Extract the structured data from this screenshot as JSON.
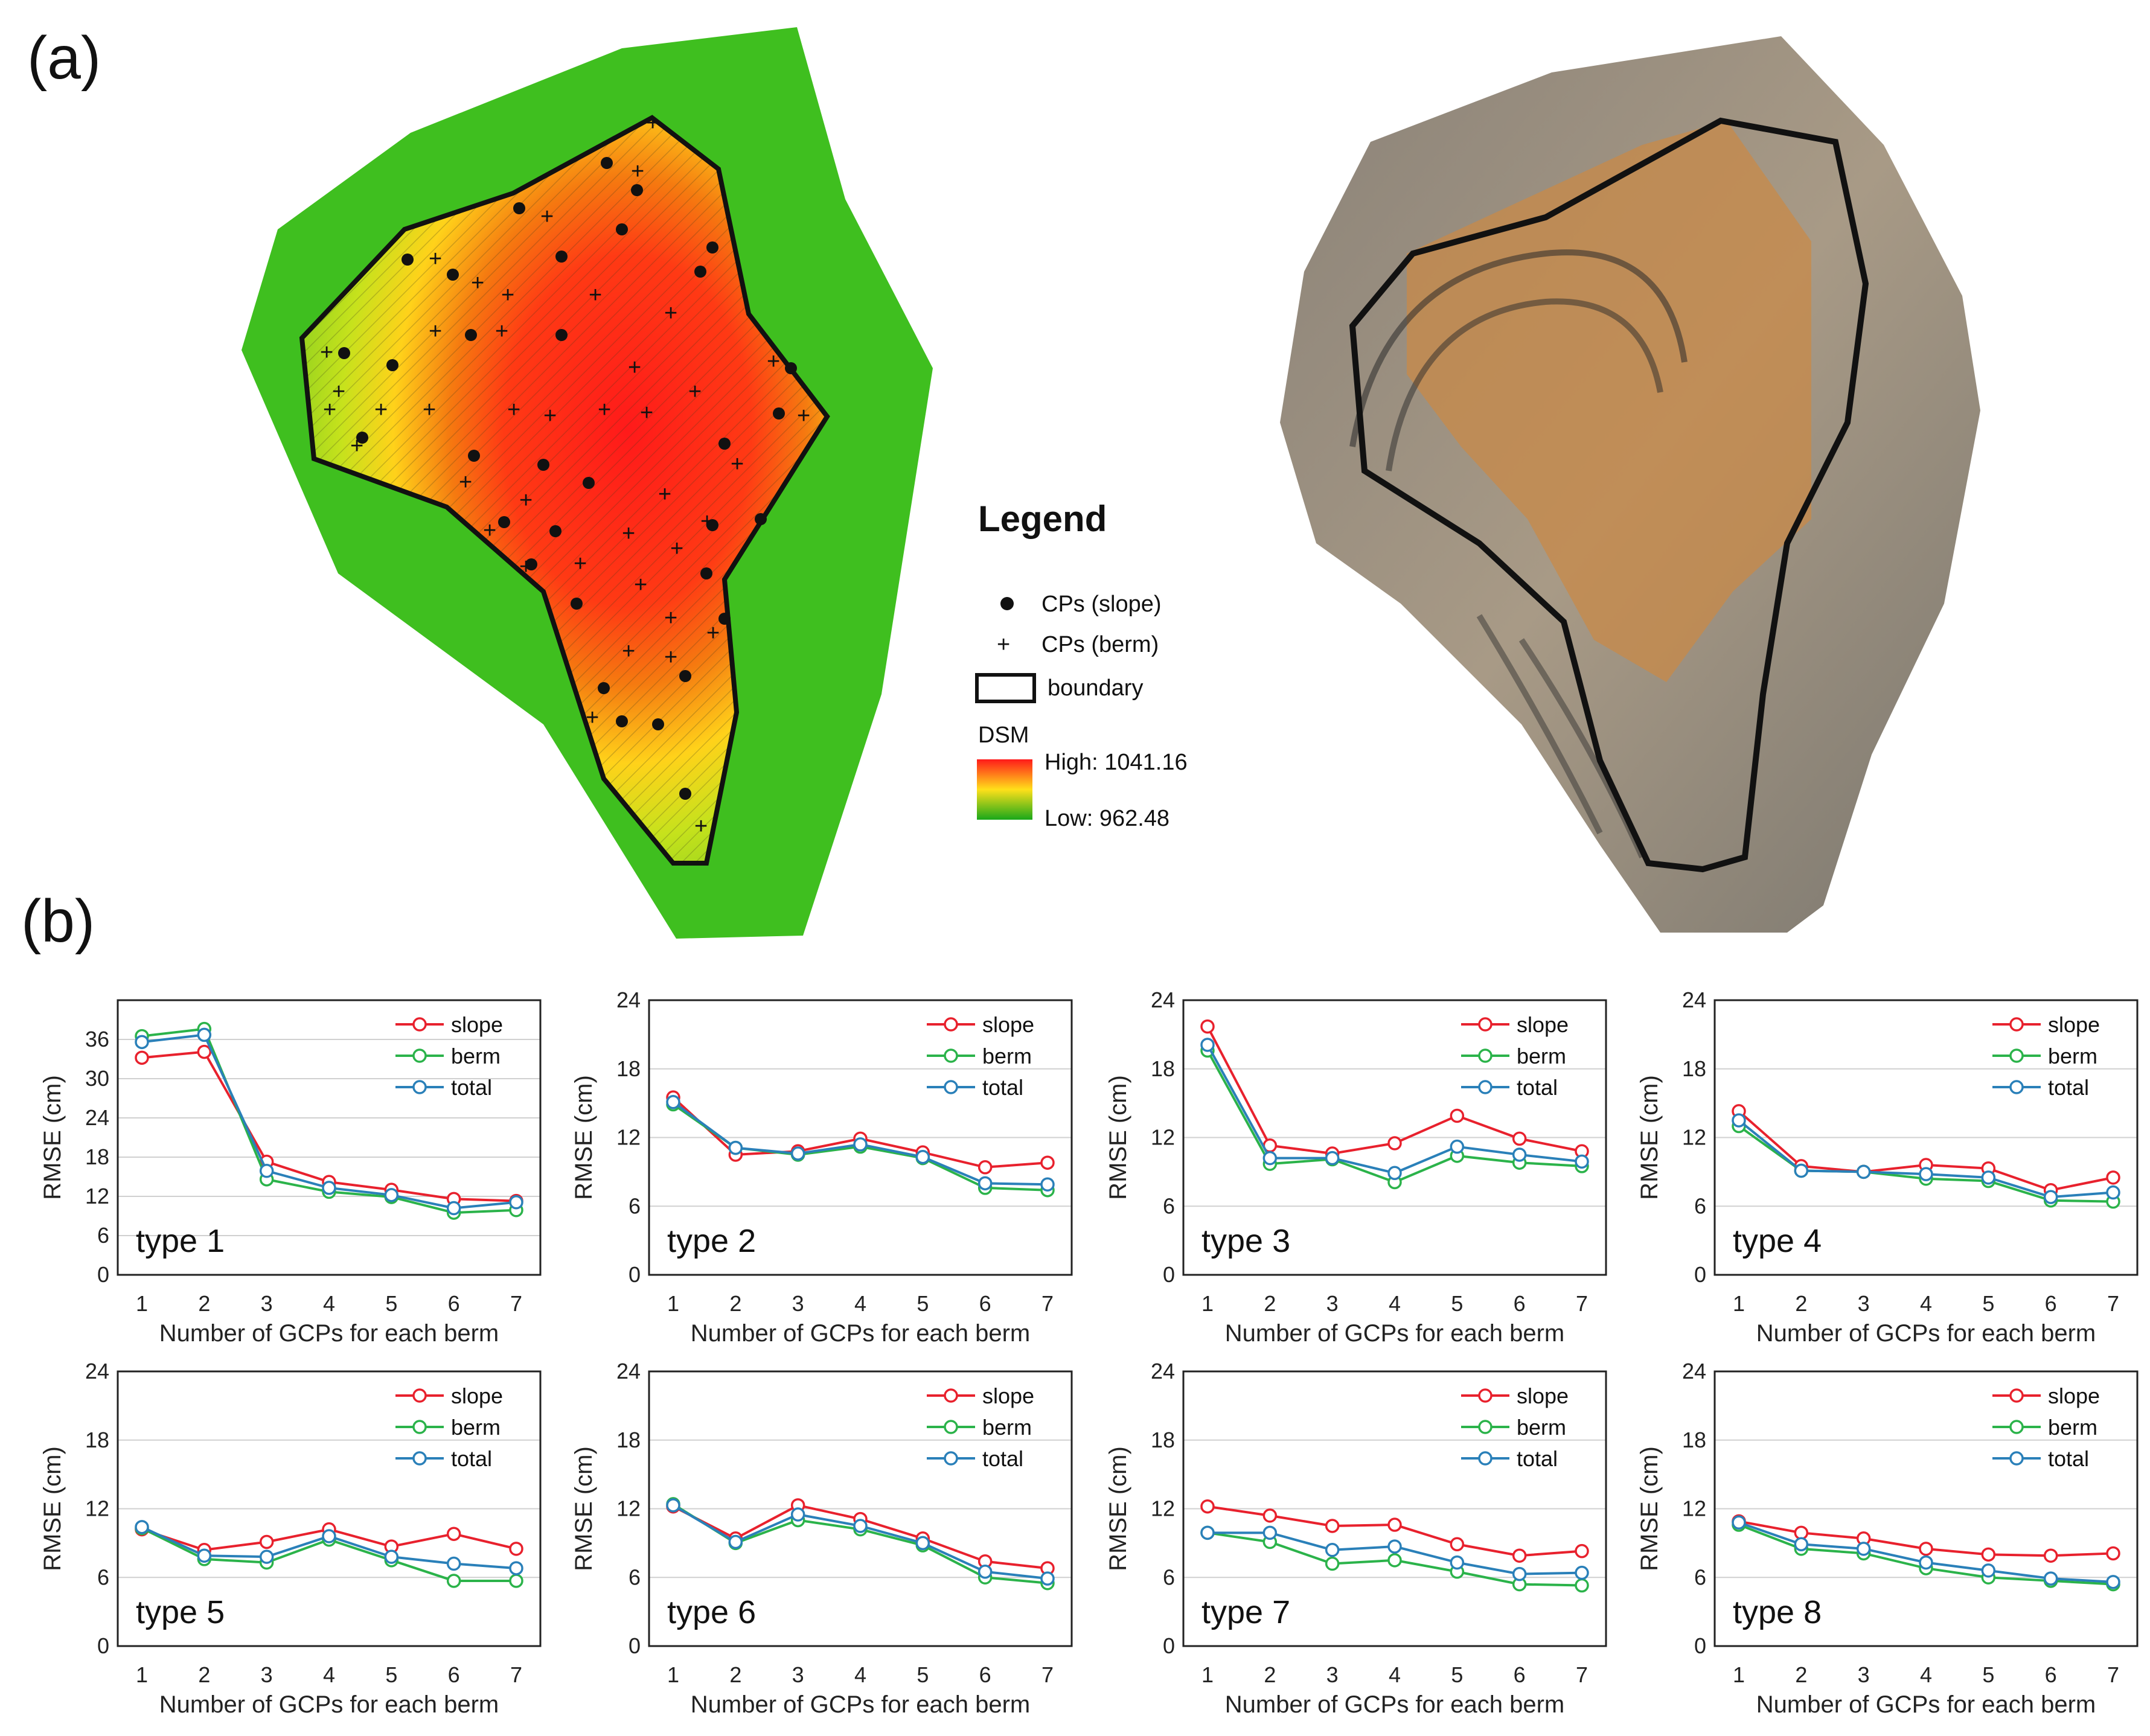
{
  "labels": {
    "panel_a": "(a)",
    "panel_b": "(b)"
  },
  "legend": {
    "title": "Legend",
    "cp_slope": "CPs (slope)",
    "cp_berm": "CPs (berm)",
    "boundary": "boundary",
    "dsm": "DSM",
    "high": "High: 1041.16",
    "low": "Low: 962.48",
    "dot_symbol": "•",
    "plus_symbol": "+"
  },
  "colors": {
    "slope": "#e8212d",
    "berm": "#2bb34a",
    "total": "#2a80b9",
    "dsm_high": "#ff1a1a",
    "dsm_mid": "#ffd21a",
    "dsm_low": "#2bb21a",
    "grid": "#d0d0d0"
  },
  "chart_data": [
    {
      "type": "line",
      "label": "type 1",
      "categories": [
        "1",
        "2",
        "3",
        "4",
        "5",
        "6",
        "7"
      ],
      "ylim": [
        0,
        42
      ],
      "yticks": [
        "0",
        "6",
        "12",
        "18",
        "24",
        "30",
        "36"
      ],
      "xlabel": "Number of GCPs for each berm",
      "ylabel": "RMSE (cm)",
      "series": [
        {
          "name": "slope",
          "values": [
            33.2,
            34.1,
            17.3,
            14.2,
            13.0,
            11.6,
            11.3
          ]
        },
        {
          "name": "berm",
          "values": [
            36.5,
            37.6,
            14.6,
            12.7,
            11.9,
            9.5,
            9.9
          ]
        },
        {
          "name": "total",
          "values": [
            35.6,
            36.7,
            15.9,
            13.3,
            12.2,
            10.2,
            11.1
          ]
        }
      ]
    },
    {
      "type": "line",
      "label": "type 2",
      "categories": [
        "1",
        "2",
        "3",
        "4",
        "5",
        "6",
        "7"
      ],
      "ylim": [
        0,
        24
      ],
      "yticks": [
        "0",
        "6",
        "12",
        "18",
        "24"
      ],
      "xlabel": "Number of GCPs for each berm",
      "ylabel": "RMSE (cm)",
      "series": [
        {
          "name": "slope",
          "values": [
            15.5,
            10.5,
            10.8,
            11.9,
            10.7,
            9.4,
            9.8
          ]
        },
        {
          "name": "berm",
          "values": [
            14.9,
            11.1,
            10.5,
            11.2,
            10.2,
            7.6,
            7.4
          ]
        },
        {
          "name": "total",
          "values": [
            15.1,
            11.1,
            10.6,
            11.4,
            10.3,
            8.0,
            7.9
          ]
        }
      ]
    },
    {
      "type": "line",
      "label": "type 3",
      "categories": [
        "1",
        "2",
        "3",
        "4",
        "5",
        "6",
        "7"
      ],
      "ylim": [
        0,
        24
      ],
      "yticks": [
        "0",
        "6",
        "12",
        "18",
        "24"
      ],
      "xlabel": "Number of GCPs for each berm",
      "ylabel": "RMSE (cm)",
      "series": [
        {
          "name": "slope",
          "values": [
            21.7,
            11.3,
            10.6,
            11.5,
            13.9,
            11.9,
            10.8
          ]
        },
        {
          "name": "berm",
          "values": [
            19.6,
            9.7,
            10.1,
            8.1,
            10.4,
            9.8,
            9.5
          ]
        },
        {
          "name": "total",
          "values": [
            20.1,
            10.2,
            10.2,
            8.9,
            11.2,
            10.5,
            9.9
          ]
        }
      ]
    },
    {
      "type": "line",
      "label": "type 4",
      "categories": [
        "1",
        "2",
        "3",
        "4",
        "5",
        "6",
        "7"
      ],
      "ylim": [
        0,
        24
      ],
      "yticks": [
        "0",
        "6",
        "12",
        "18",
        "24"
      ],
      "xlabel": "Number of GCPs for each berm",
      "ylabel": "RMSE (cm)",
      "series": [
        {
          "name": "slope",
          "values": [
            14.3,
            9.5,
            9.0,
            9.6,
            9.3,
            7.4,
            8.5
          ]
        },
        {
          "name": "berm",
          "values": [
            13.0,
            9.1,
            9.0,
            8.4,
            8.2,
            6.5,
            6.4
          ]
        },
        {
          "name": "total",
          "values": [
            13.5,
            9.1,
            9.0,
            8.8,
            8.5,
            6.8,
            7.2
          ]
        }
      ]
    },
    {
      "type": "line",
      "label": "type 5",
      "categories": [
        "1",
        "2",
        "3",
        "4",
        "5",
        "6",
        "7"
      ],
      "ylim": [
        0,
        24
      ],
      "yticks": [
        "0",
        "6",
        "12",
        "18",
        "24"
      ],
      "xlabel": "Number of GCPs for each berm",
      "ylabel": "RMSE (cm)",
      "series": [
        {
          "name": "slope",
          "values": [
            10.2,
            8.4,
            9.1,
            10.2,
            8.7,
            9.8,
            8.5
          ]
        },
        {
          "name": "berm",
          "values": [
            10.3,
            7.6,
            7.3,
            9.3,
            7.5,
            5.7,
            5.7
          ]
        },
        {
          "name": "total",
          "values": [
            10.4,
            7.9,
            7.8,
            9.6,
            7.8,
            7.2,
            6.8
          ]
        }
      ]
    },
    {
      "type": "line",
      "label": "type 6",
      "categories": [
        "1",
        "2",
        "3",
        "4",
        "5",
        "6",
        "7"
      ],
      "ylim": [
        0,
        24
      ],
      "yticks": [
        "0",
        "6",
        "12",
        "18",
        "24"
      ],
      "xlabel": "Number of GCPs for each berm",
      "ylabel": "RMSE (cm)",
      "series": [
        {
          "name": "slope",
          "values": [
            12.2,
            9.4,
            12.3,
            11.1,
            9.4,
            7.4,
            6.8
          ]
        },
        {
          "name": "berm",
          "values": [
            12.4,
            9.0,
            11.0,
            10.2,
            8.8,
            6.0,
            5.5
          ]
        },
        {
          "name": "total",
          "values": [
            12.3,
            9.1,
            11.5,
            10.5,
            9.0,
            6.5,
            5.9
          ]
        }
      ]
    },
    {
      "type": "line",
      "label": "type 7",
      "categories": [
        "1",
        "2",
        "3",
        "4",
        "5",
        "6",
        "7"
      ],
      "ylim": [
        0,
        24
      ],
      "yticks": [
        "0",
        "6",
        "12",
        "18",
        "24"
      ],
      "xlabel": "Number of GCPs for each berm",
      "ylabel": "RMSE (cm)",
      "series": [
        {
          "name": "slope",
          "values": [
            12.2,
            11.4,
            10.5,
            10.6,
            8.9,
            7.9,
            8.3
          ]
        },
        {
          "name": "berm",
          "values": [
            9.9,
            9.1,
            7.2,
            7.5,
            6.5,
            5.4,
            5.3
          ]
        },
        {
          "name": "total",
          "values": [
            9.9,
            9.9,
            8.4,
            8.7,
            7.3,
            6.3,
            6.4
          ]
        }
      ]
    },
    {
      "type": "line",
      "label": "type 8",
      "categories": [
        "1",
        "2",
        "3",
        "4",
        "5",
        "6",
        "7"
      ],
      "ylim": [
        0,
        24
      ],
      "yticks": [
        "0",
        "6",
        "12",
        "18",
        "24"
      ],
      "xlabel": "Number of GCPs for each berm",
      "ylabel": "RMSE (cm)",
      "series": [
        {
          "name": "slope",
          "values": [
            10.9,
            9.9,
            9.4,
            8.5,
            8.0,
            7.9,
            8.1
          ]
        },
        {
          "name": "berm",
          "values": [
            10.6,
            8.5,
            8.1,
            6.8,
            6.0,
            5.7,
            5.4
          ]
        },
        {
          "name": "total",
          "values": [
            10.8,
            8.9,
            8.5,
            7.3,
            6.6,
            5.9,
            5.6
          ]
        }
      ]
    }
  ]
}
